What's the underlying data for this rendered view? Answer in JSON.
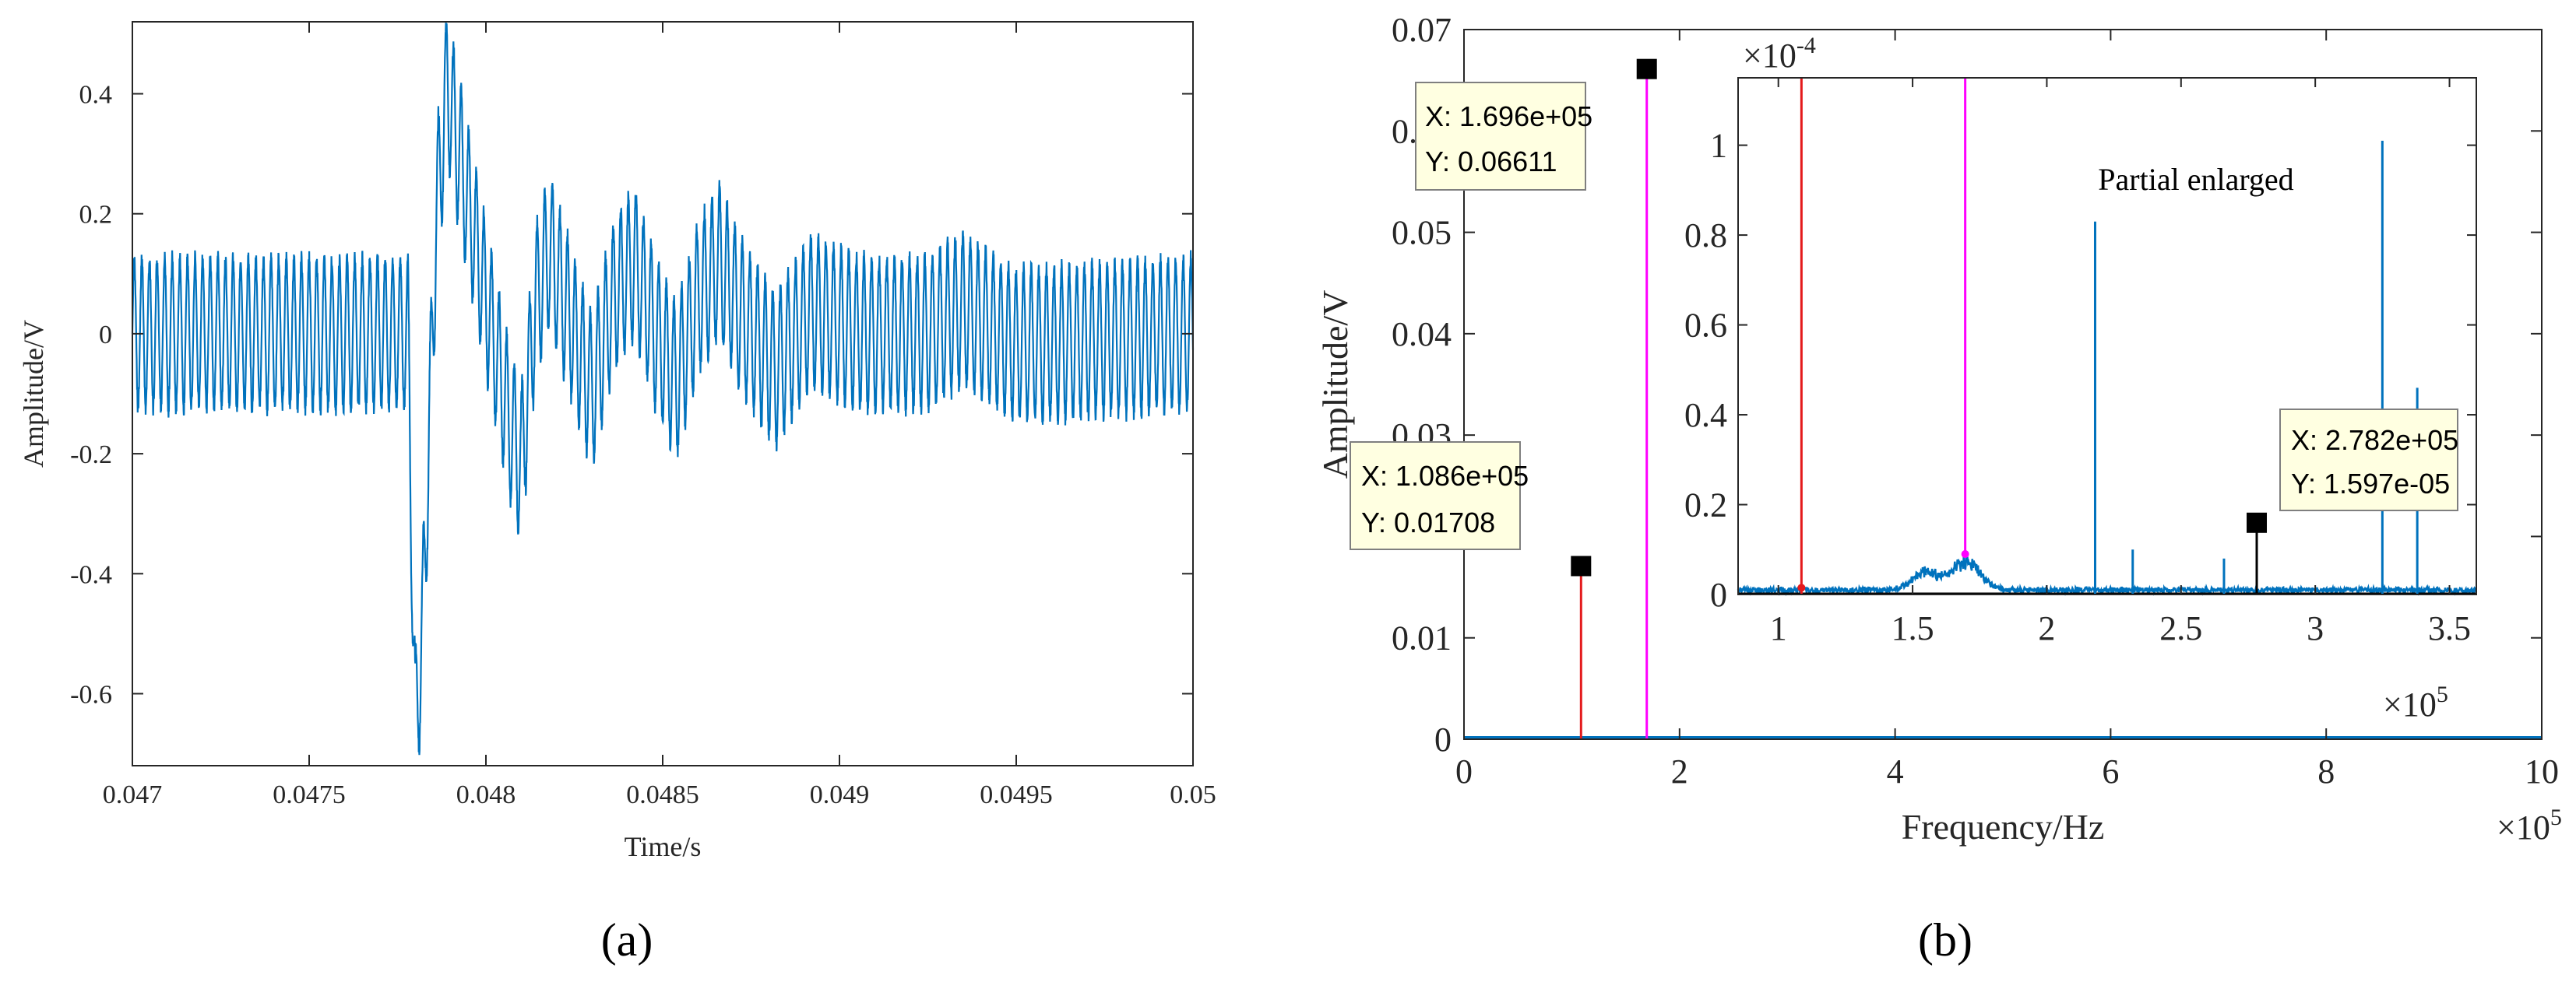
{
  "chart_data": [
    {
      "panel_label": "(a)",
      "type": "line",
      "xlabel": "Time/s",
      "ylabel": "Amplitude/V",
      "xlim": [
        0.047,
        0.05
      ],
      "ylim": [
        -0.72,
        0.52
      ],
      "xticks": [
        0.047,
        0.0475,
        0.048,
        0.0485,
        0.049,
        0.0495,
        0.05
      ],
      "xtick_labels": [
        "0.047",
        "0.0475",
        "0.048",
        "0.0485",
        "0.049",
        "0.0495",
        "0.05"
      ],
      "yticks": [
        -0.6,
        -0.4,
        -0.2,
        0,
        0.2,
        0.4
      ],
      "ytick_labels": [
        "-0.6",
        "-0.4",
        "-0.2",
        "0",
        "0.2",
        "0.4"
      ],
      "line_color": "#0072BD",
      "noise_band_amplitude": 0.14,
      "noise_period_s": 2.15e-05,
      "envelope_points": [
        [
          0.047,
          0.0
        ],
        [
          0.04778,
          0.0
        ],
        [
          0.0478,
          -0.66
        ],
        [
          0.04782,
          -0.5
        ],
        [
          0.04786,
          0.2
        ],
        [
          0.04789,
          0.42
        ],
        [
          0.04793,
          0.28
        ],
        [
          0.048,
          0.06
        ],
        [
          0.04806,
          -0.13
        ],
        [
          0.0481,
          -0.22
        ],
        [
          0.04814,
          0.05
        ],
        [
          0.04818,
          0.14
        ],
        [
          0.04824,
          0.02
        ],
        [
          0.0483,
          -0.1
        ],
        [
          0.04836,
          0.06
        ],
        [
          0.04842,
          0.12
        ],
        [
          0.04848,
          0.0
        ],
        [
          0.04854,
          -0.08
        ],
        [
          0.0486,
          0.06
        ],
        [
          0.04866,
          0.12
        ],
        [
          0.04873,
          0.02
        ],
        [
          0.04882,
          -0.06
        ],
        [
          0.04892,
          0.04
        ],
        [
          0.04905,
          0.0
        ],
        [
          0.04925,
          0.0
        ],
        [
          0.04935,
          0.04
        ],
        [
          0.0495,
          -0.02
        ],
        [
          0.05,
          0.0
        ]
      ]
    },
    {
      "panel_label": "(b)",
      "type": "line",
      "xlabel": "Frequency/Hz",
      "ylabel": "Amplitude/V",
      "xlim": [
        0,
        10
      ],
      "ylim": [
        0,
        0.07
      ],
      "x_multiplier_label": "×10",
      "x_multiplier_exp": "5",
      "xticks": [
        0,
        2,
        4,
        6,
        8,
        10
      ],
      "xtick_labels": [
        "0",
        "2",
        "4",
        "6",
        "8",
        "10"
      ],
      "yticks": [
        0,
        0.01,
        0.02,
        0.03,
        0.04,
        0.05,
        0.06,
        0.07
      ],
      "ytick_labels": [
        "0",
        "0.01",
        "0.02",
        "0.03",
        "0.04",
        "0.05",
        "0.06",
        "0.07"
      ],
      "series": [
        {
          "name": "spectrum",
          "color": "#0072BD",
          "x": [
            0,
            10
          ],
          "y": [
            0.0001,
            0.0001
          ]
        },
        {
          "name": "peak-1",
          "color": "#E41A1C",
          "x": [
            1.086,
            1.086
          ],
          "y": [
            0,
            0.01708
          ]
        },
        {
          "name": "peak-2",
          "color": "#FF00FF",
          "x": [
            1.696,
            1.696
          ],
          "y": [
            0,
            0.06611
          ]
        }
      ],
      "datatips": [
        {
          "x_label": "X: 1.086e+05",
          "y_label": "Y: 0.01708",
          "x": 1.086,
          "y": 0.01708
        },
        {
          "x_label": "X: 1.696e+05",
          "y_label": "Y: 0.06611",
          "x": 1.696,
          "y": 0.06611
        }
      ],
      "inset": {
        "title": "Partial enlarged",
        "xlim": [
          0.85,
          3.6
        ],
        "ylim": [
          0,
          1.15
        ],
        "y_multiplier_label": "×10",
        "y_multiplier_exp": "-4",
        "x_multiplier_label": "×10",
        "x_multiplier_exp": "5",
        "xticks": [
          1,
          1.5,
          2,
          2.5,
          3,
          3.5
        ],
        "xtick_labels": [
          "1",
          "1.5",
          "2",
          "2.5",
          "3",
          "3.5"
        ],
        "yticks": [
          0,
          0.2,
          0.4,
          0.6,
          0.8,
          1
        ],
        "ytick_labels": [
          "0",
          "0.2",
          "0.4",
          "0.6",
          "0.8",
          "1"
        ],
        "red_line_x": 1.086,
        "magenta_line_x": 1.696,
        "black_marker_x": 2.782,
        "black_marker_y": 0.1597,
        "spikes": [
          {
            "x": 2.18,
            "y": 0.83
          },
          {
            "x": 2.32,
            "y": 0.1
          },
          {
            "x": 2.66,
            "y": 0.08
          },
          {
            "x": 3.25,
            "y": 1.01
          },
          {
            "x": 3.38,
            "y": 0.46
          }
        ],
        "bumps": [
          {
            "x": 1.55,
            "y": 0.05
          },
          {
            "x": 1.7,
            "y": 0.08
          }
        ],
        "datatip": {
          "x_label": "X: 2.782e+05",
          "y_label": "Y: 1.597e-05"
        }
      }
    }
  ]
}
